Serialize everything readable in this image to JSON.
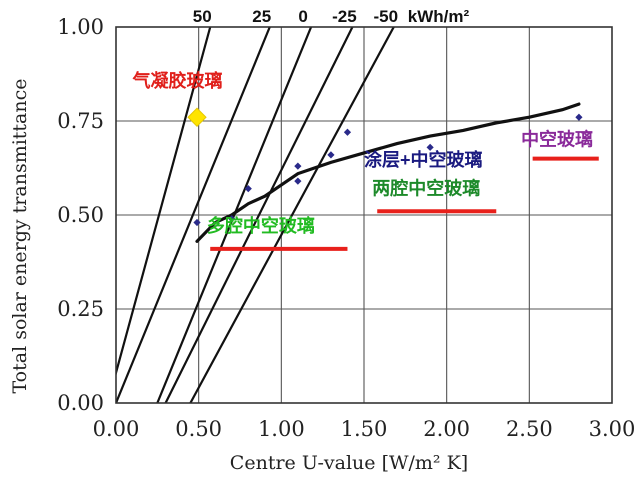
{
  "chart_data": {
    "type": "scatter",
    "xlabel": "Centre U-value   [W/m² K]",
    "ylabel": "Total solar energy transmittance",
    "xlim": [
      0,
      3
    ],
    "ylim": [
      0,
      1
    ],
    "x_ticks": [
      0,
      0.5,
      1,
      1.5,
      2,
      2.5,
      3
    ],
    "y_ticks": [
      0,
      0.25,
      0.5,
      0.75,
      1
    ],
    "x_tick_labels": [
      "0.00",
      "0.50",
      "1.00",
      "1.50",
      "2.00",
      "2.50",
      "3.00"
    ],
    "y_tick_labels": [
      "0.00",
      "0.25",
      "0.50",
      "0.75",
      "1.00"
    ],
    "grid": true,
    "energy_balance_lines": {
      "values": [
        50,
        25,
        0,
        -25,
        -50
      ],
      "labels": [
        "50",
        "25",
        "0",
        "-25",
        "-50"
      ],
      "unit": "kWh/m²",
      "lines": [
        {
          "value": 50,
          "x0_at_g0": -0.05,
          "x1_at_g1": 0.57
        },
        {
          "value": 25,
          "x0_at_g0": 0.0,
          "x1_at_g1": 0.93
        },
        {
          "value": 0,
          "x0_at_g0": 0.25,
          "x1_at_g1": 1.18
        },
        {
          "value": -25,
          "x0_at_g0": 0.3,
          "x1_at_g1": 1.43
        },
        {
          "value": -50,
          "x0_at_g0": 0.45,
          "x1_at_g1": 1.68
        }
      ]
    },
    "measured_points": [
      {
        "x": 0.49,
        "y": 0.48
      },
      {
        "x": 0.7,
        "y": 0.49
      },
      {
        "x": 0.8,
        "y": 0.57
      },
      {
        "x": 1.1,
        "y": 0.59
      },
      {
        "x": 1.1,
        "y": 0.63
      },
      {
        "x": 1.3,
        "y": 0.66
      },
      {
        "x": 1.4,
        "y": 0.72
      },
      {
        "x": 1.9,
        "y": 0.68
      },
      {
        "x": 2.8,
        "y": 0.76
      }
    ],
    "highlight_point": {
      "x": 0.49,
      "y": 0.76,
      "color": "#ffe400"
    },
    "trend_curve": [
      [
        0.49,
        0.43
      ],
      [
        0.6,
        0.48
      ],
      [
        0.7,
        0.5
      ],
      [
        0.8,
        0.53
      ],
      [
        0.9,
        0.55
      ],
      [
        1.0,
        0.58
      ],
      [
        1.1,
        0.61
      ],
      [
        1.2,
        0.625
      ],
      [
        1.3,
        0.64
      ],
      [
        1.5,
        0.665
      ],
      [
        1.7,
        0.69
      ],
      [
        1.9,
        0.71
      ],
      [
        2.1,
        0.725
      ],
      [
        2.3,
        0.745
      ],
      [
        2.5,
        0.76
      ],
      [
        2.7,
        0.78
      ],
      [
        2.8,
        0.795
      ]
    ],
    "annotations": [
      {
        "text": "气凝胶玻璃",
        "x": 0.1,
        "y": 0.84,
        "color": "#e0201b"
      },
      {
        "text": "涂层+中空玻璃",
        "x": 1.5,
        "y": 0.63,
        "color": "#1a1a80"
      },
      {
        "text": "两腔中空玻璃",
        "x": 1.55,
        "y": 0.555,
        "color": "#1d8a2a"
      },
      {
        "text": "多腔中空玻璃",
        "x": 0.55,
        "y": 0.455,
        "color": "#22bb22"
      },
      {
        "text": "中空玻璃",
        "x": 2.45,
        "y": 0.685,
        "color": "#8a2a9a"
      }
    ],
    "underlines": [
      {
        "x0": 0.57,
        "x1": 1.4,
        "y": 0.41
      },
      {
        "x0": 1.58,
        "x1": 2.3,
        "y": 0.51
      },
      {
        "x0": 2.52,
        "x1": 2.92,
        "y": 0.65
      }
    ],
    "colors": {
      "points": "#2a2a8a",
      "underline": "#e8201b",
      "lines": "#111111",
      "grid": "#555555"
    }
  }
}
